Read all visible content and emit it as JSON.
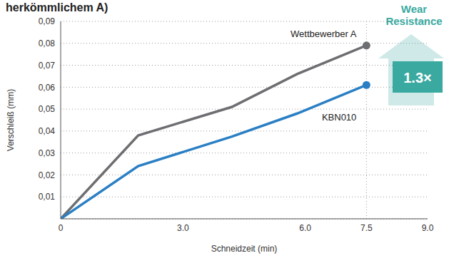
{
  "chart_data": {
    "type": "line",
    "title": "herkömmlichem A)",
    "x_label": "Schneidzeit (min)",
    "y_label": "Verschleiß (mm)",
    "x": [
      0,
      1.9,
      4.2,
      5.8,
      7.5
    ],
    "series": [
      {
        "name": "Wettbewerber A",
        "color": "#6d6e71",
        "values": [
          0,
          0.038,
          0.051,
          0.066,
          0.079
        ]
      },
      {
        "name": "KBN010",
        "color": "#2a7fc4",
        "values": [
          0,
          0.024,
          0.0375,
          0.048,
          0.061
        ]
      }
    ],
    "xlim": [
      0,
      9
    ],
    "xticks": [
      0,
      {
        "value": 3,
        "label": "3.0"
      },
      {
        "value": 6,
        "label": "6.0"
      },
      7.5,
      {
        "value": 9,
        "label": "9.0"
      }
    ],
    "ylim": [
      0,
      0.09
    ],
    "yticks": [
      {
        "value": 0.01,
        "label": "0,01"
      },
      {
        "value": 0.02,
        "label": "0,02"
      },
      {
        "value": 0.03,
        "label": "0,03"
      },
      {
        "value": 0.04,
        "label": "0,04"
      },
      {
        "value": 0.05,
        "label": "0,05"
      },
      {
        "value": 0.06,
        "label": "0,06"
      },
      {
        "value": 0.07,
        "label": "0,07"
      },
      {
        "value": 0.08,
        "label": "0,08"
      },
      {
        "value": 0.09,
        "label": "0,09"
      }
    ],
    "grid": true,
    "annotations": [
      {
        "text": "Wear Resistance",
        "color": "#3aa99f"
      },
      {
        "text": "1.3×",
        "color": "#3aa99f"
      }
    ]
  }
}
